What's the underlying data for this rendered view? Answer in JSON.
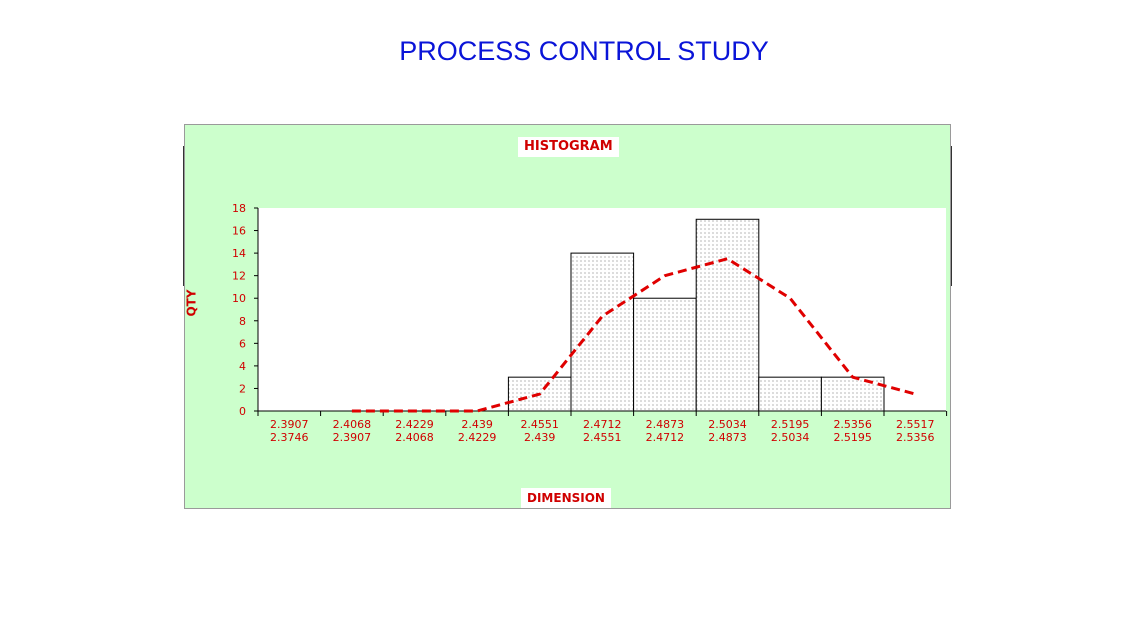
{
  "page": {
    "title": "PROCESS CONTROL STUDY"
  },
  "chart_data": {
    "type": "bar",
    "title": "HISTOGRAM",
    "xlabel": "DIMENSION",
    "ylabel": "QTY",
    "ylim": [
      0,
      18
    ],
    "yticks": [
      0,
      2,
      4,
      6,
      8,
      10,
      12,
      14,
      16,
      18
    ],
    "categories": [
      {
        "upper": "2.3907",
        "lower": "2.3746"
      },
      {
        "upper": "2.4068",
        "lower": "2.3907"
      },
      {
        "upper": "2.4229",
        "lower": "2.4068"
      },
      {
        "upper": "2.439",
        "lower": "2.4229"
      },
      {
        "upper": "2.4551",
        "lower": "2.439"
      },
      {
        "upper": "2.4712",
        "lower": "2.4551"
      },
      {
        "upper": "2.4873",
        "lower": "2.4712"
      },
      {
        "upper": "2.5034",
        "lower": "2.4873"
      },
      {
        "upper": "2.5195",
        "lower": "2.5034"
      },
      {
        "upper": "2.5356",
        "lower": "2.5195"
      },
      {
        "upper": "2.5517",
        "lower": "2.5356"
      }
    ],
    "series": [
      {
        "type": "bar",
        "values": [
          0,
          0,
          0,
          0,
          3,
          14,
          10,
          17,
          3,
          3,
          0
        ]
      },
      {
        "type": "line",
        "style": "dashed",
        "values": [
          null,
          0,
          0,
          0,
          1.5,
          8.4,
          12,
          13.5,
          10,
          3,
          1.5
        ]
      }
    ],
    "grid": false,
    "colors": {
      "bar_fill": "#ffffff",
      "bar_dots": "#555555",
      "bar_edge": "#000000",
      "curve": "#e00000",
      "text": "#d00000",
      "panel": "#ccffcc",
      "title": "#0a14d8"
    }
  }
}
